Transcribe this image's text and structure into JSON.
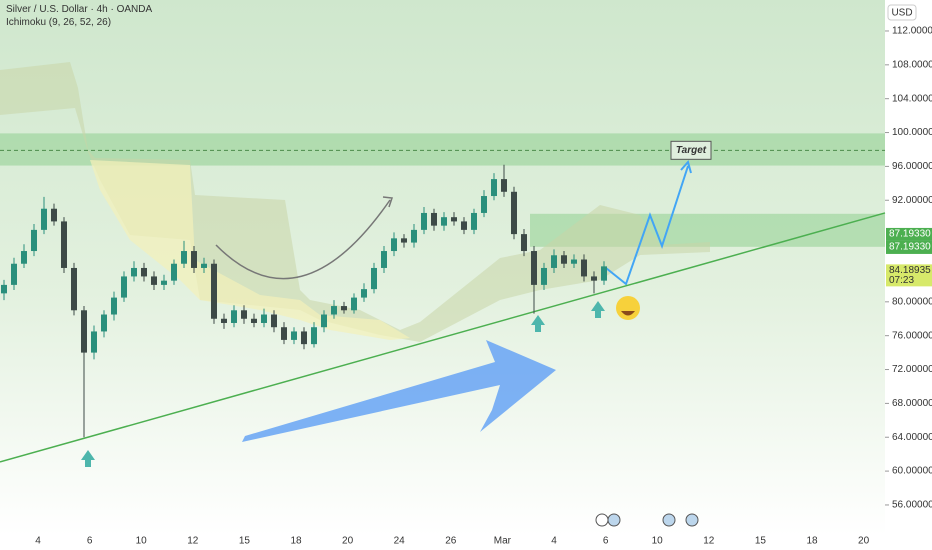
{
  "chart_data": {
    "type": "candlestick",
    "title": "Silver / U.S. Dollar · 4h · OANDA",
    "subtitle": "Ichimoku (9, 26, 52, 26)",
    "currency": "USD",
    "annotation": "Target",
    "countdown": "07:23",
    "ylim": [
      52.45,
      115.66
    ],
    "yticks": [
      {
        "value": 112,
        "label": "112.00000"
      },
      {
        "value": 108,
        "label": "108.00000"
      },
      {
        "value": 104,
        "label": "104.00000"
      },
      {
        "value": 100,
        "label": "100.00000"
      },
      {
        "value": 96,
        "label": "96.00000"
      },
      {
        "value": 92,
        "label": "92.00000"
      },
      {
        "value": 80,
        "label": "80.00000"
      },
      {
        "value": 76,
        "label": "76.00000"
      },
      {
        "value": 72,
        "label": "72.00000"
      },
      {
        "value": 68,
        "label": "68.00000"
      },
      {
        "value": 64,
        "label": "64.00000"
      },
      {
        "value": 60,
        "label": "60.00000"
      },
      {
        "value": 56,
        "label": "56.00000"
      }
    ],
    "xticks": [
      "4",
      "6",
      "10",
      "12",
      "15",
      "18",
      "20",
      "24",
      "26",
      "Mar",
      "4",
      "6",
      "10",
      "12",
      "15",
      "18",
      "20"
    ],
    "price_labels": [
      {
        "value": 87.1933,
        "label": "87.19330",
        "color": "#4caf50"
      },
      {
        "value": 87.1933,
        "label": "87.19330",
        "color": "#4caf50"
      },
      {
        "value": 84.18935,
        "label": "84.18935",
        "color": "#d7e96a"
      }
    ],
    "up_color": "#2a8f7c",
    "down_color": "#3d4a47",
    "zones": [
      {
        "from": 96.1,
        "to": 99.9,
        "color": "#8fd08f"
      },
      {
        "from": 86.5,
        "to": 90.4,
        "color": "#8fd08f"
      }
    ],
    "target_level": 97.9,
    "trendline": [
      61.08,
      90.5
    ],
    "open": [
      81.0,
      82.0,
      84.5,
      86.0,
      88.5,
      91.0,
      89.5,
      84.0,
      79.0,
      74.0,
      76.5,
      78.5,
      80.5,
      83.0,
      84.0,
      83.0,
      82.0,
      82.5,
      84.5,
      86.0,
      84.0,
      84.5,
      78.0,
      77.5,
      79.0,
      78.0,
      77.5,
      78.5,
      77.0,
      75.5,
      76.5,
      75.0,
      77.0,
      78.5,
      79.5,
      79.0,
      80.5,
      81.5,
      84.0,
      86.0,
      87.5,
      87.0,
      88.5,
      90.5,
      89.0,
      90.0,
      89.5,
      88.5,
      90.5,
      92.5,
      94.5,
      93.0,
      88.0,
      86.0,
      82.0,
      84.0,
      85.5,
      84.5,
      85.0,
      83.0,
      82.5
    ],
    "high": [
      82.6,
      85.2,
      86.8,
      89.2,
      92.4,
      91.6,
      90.0,
      84.6,
      79.5,
      77.2,
      79.0,
      81.2,
      83.6,
      84.8,
      84.6,
      83.6,
      83.2,
      85.0,
      87.2,
      86.6,
      85.2,
      85.0,
      78.6,
      79.6,
      79.6,
      78.6,
      79.2,
      79.0,
      77.6,
      77.0,
      77.0,
      77.6,
      79.0,
      80.2,
      80.0,
      81.0,
      82.2,
      84.6,
      86.6,
      88.2,
      88.0,
      89.2,
      91.2,
      91.0,
      90.6,
      90.6,
      90.0,
      91.0,
      93.2,
      95.2,
      96.2,
      93.6,
      88.6,
      86.6,
      84.6,
      86.2,
      86.0,
      85.6,
      85.6,
      83.6,
      84.8
    ],
    "low": [
      80.2,
      81.4,
      84.0,
      85.4,
      88.0,
      89.0,
      83.4,
      78.4,
      64.0,
      73.2,
      75.8,
      77.8,
      80.0,
      82.4,
      82.4,
      81.4,
      81.4,
      82.0,
      84.0,
      83.4,
      83.4,
      77.4,
      76.8,
      77.0,
      77.4,
      77.0,
      77.0,
      76.4,
      75.0,
      75.0,
      74.4,
      74.6,
      76.4,
      78.0,
      78.6,
      78.6,
      80.0,
      81.0,
      83.4,
      85.4,
      86.4,
      86.4,
      88.0,
      88.4,
      88.4,
      89.0,
      88.0,
      88.0,
      90.0,
      92.0,
      92.4,
      87.4,
      85.4,
      78.6,
      81.4,
      83.4,
      84.0,
      84.0,
      82.4,
      81.0,
      82.0
    ],
    "close": [
      82.0,
      84.5,
      86.0,
      88.5,
      91.0,
      89.5,
      84.0,
      79.0,
      74.0,
      76.5,
      78.5,
      80.5,
      83.0,
      84.0,
      83.0,
      82.0,
      82.5,
      84.5,
      86.0,
      84.0,
      84.5,
      78.0,
      77.5,
      79.0,
      78.0,
      77.5,
      78.5,
      77.0,
      75.5,
      76.5,
      75.0,
      77.0,
      78.5,
      79.5,
      79.0,
      80.5,
      81.5,
      84.0,
      86.0,
      87.5,
      87.0,
      88.5,
      90.5,
      89.0,
      90.0,
      89.5,
      88.5,
      90.5,
      92.5,
      94.5,
      93.0,
      88.0,
      86.0,
      82.0,
      84.0,
      85.5,
      84.5,
      85.0,
      83.0,
      82.5,
      84.19
    ]
  }
}
